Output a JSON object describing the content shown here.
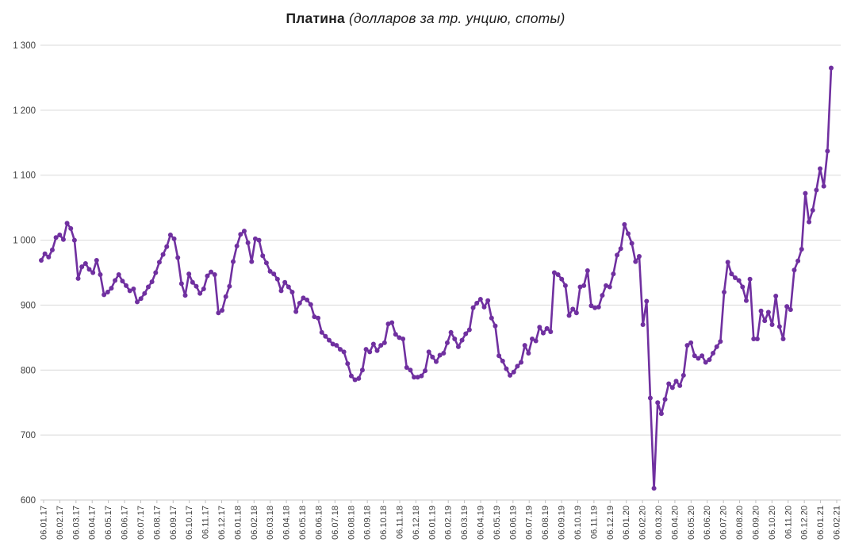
{
  "chart": {
    "title_main": "Платина",
    "title_sub": " (долларов за тр. унцию, споты)"
  },
  "chart_data": {
    "type": "line",
    "title": "Платина (долларов за тр. унцию, споты)",
    "grid": true,
    "legend": false,
    "line_color": "#7030A0",
    "marker_color": "#7030A0",
    "grid_color": "#D9D9D9",
    "axis_line_color": "#C9C9C9",
    "tick_color": "#BFBFBF",
    "axis_text_color": "#404040",
    "ylim": [
      600,
      1300
    ],
    "ytick_step": 100,
    "ytick_labels": [
      "1 300",
      "1 200",
      "1 100",
      "1 000",
      "900",
      "800",
      "700",
      "600"
    ],
    "ytick_values": [
      1300,
      1200,
      1100,
      1000,
      900,
      800,
      700,
      600
    ],
    "x_tick_labels": [
      "06.01.17",
      "06.02.17",
      "06.03.17",
      "06.04.17",
      "06.05.17",
      "06.06.17",
      "06.07.17",
      "06.08.17",
      "06.09.17",
      "06.10.17",
      "06.11.17",
      "06.12.17",
      "06.01.18",
      "06.02.18",
      "06.03.18",
      "06.04.18",
      "06.05.18",
      "06.06.18",
      "06.07.18",
      "06.08.18",
      "06.09.18",
      "06.10.18",
      "06.11.18",
      "06.12.18",
      "06.01.19",
      "06.02.19",
      "06.03.19",
      "06.04.19",
      "06.05.19",
      "06.06.19",
      "06.07.19",
      "06.08.19",
      "06.09.19",
      "06.10.19",
      "06.11.19",
      "06.12.19",
      "06.01.20",
      "06.02.20",
      "06.03.20",
      "06.04.20",
      "06.05.20",
      "06.06.20",
      "06.07.20",
      "06.08.20",
      "06.09.20",
      "06.10.20",
      "06.11.20",
      "06.12.20",
      "06.01.21",
      "06.02.21"
    ],
    "values": [
      969,
      979,
      974,
      985,
      1004,
      1008,
      1001,
      1026,
      1018,
      1000,
      941,
      959,
      964,
      955,
      950,
      969,
      947,
      916,
      920,
      926,
      938,
      947,
      937,
      930,
      922,
      925,
      905,
      910,
      918,
      928,
      936,
      950,
      966,
      978,
      990,
      1008,
      1002,
      973,
      933,
      915,
      948,
      935,
      929,
      918,
      925,
      945,
      951,
      947,
      888,
      892,
      913,
      929,
      967,
      991,
      1009,
      1014,
      996,
      967,
      1002,
      1000,
      976,
      965,
      952,
      948,
      940,
      922,
      935,
      928,
      920,
      890,
      903,
      911,
      908,
      901,
      882,
      880,
      858,
      852,
      846,
      840,
      838,
      832,
      828,
      810,
      791,
      785,
      787,
      800,
      832,
      828,
      840,
      830,
      838,
      842,
      871,
      873,
      855,
      850,
      848,
      804,
      800,
      789,
      789,
      791,
      799,
      828,
      820,
      813,
      823,
      826,
      842,
      858,
      848,
      836,
      846,
      856,
      862,
      896,
      903,
      909,
      897,
      907,
      880,
      868,
      822,
      814,
      802,
      792,
      797,
      806,
      812,
      838,
      826,
      848,
      845,
      866,
      857,
      864,
      859,
      950,
      947,
      940,
      930,
      884,
      894,
      888,
      928,
      930,
      953,
      899,
      896,
      897,
      915,
      930,
      928,
      948,
      977,
      987,
      1024,
      1010,
      995,
      967,
      975,
      870,
      906,
      757,
      618,
      750,
      733,
      755,
      779,
      773,
      783,
      776,
      792,
      838,
      842,
      822,
      818,
      822,
      812,
      816,
      826,
      836,
      844,
      920,
      966,
      948,
      942,
      938,
      928,
      907,
      940,
      848,
      848,
      891,
      876,
      889,
      870,
      914,
      867,
      848,
      898,
      893,
      954,
      968,
      986,
      1072,
      1028,
      1046,
      1077,
      1110,
      1083,
      1137,
      1265
    ]
  }
}
